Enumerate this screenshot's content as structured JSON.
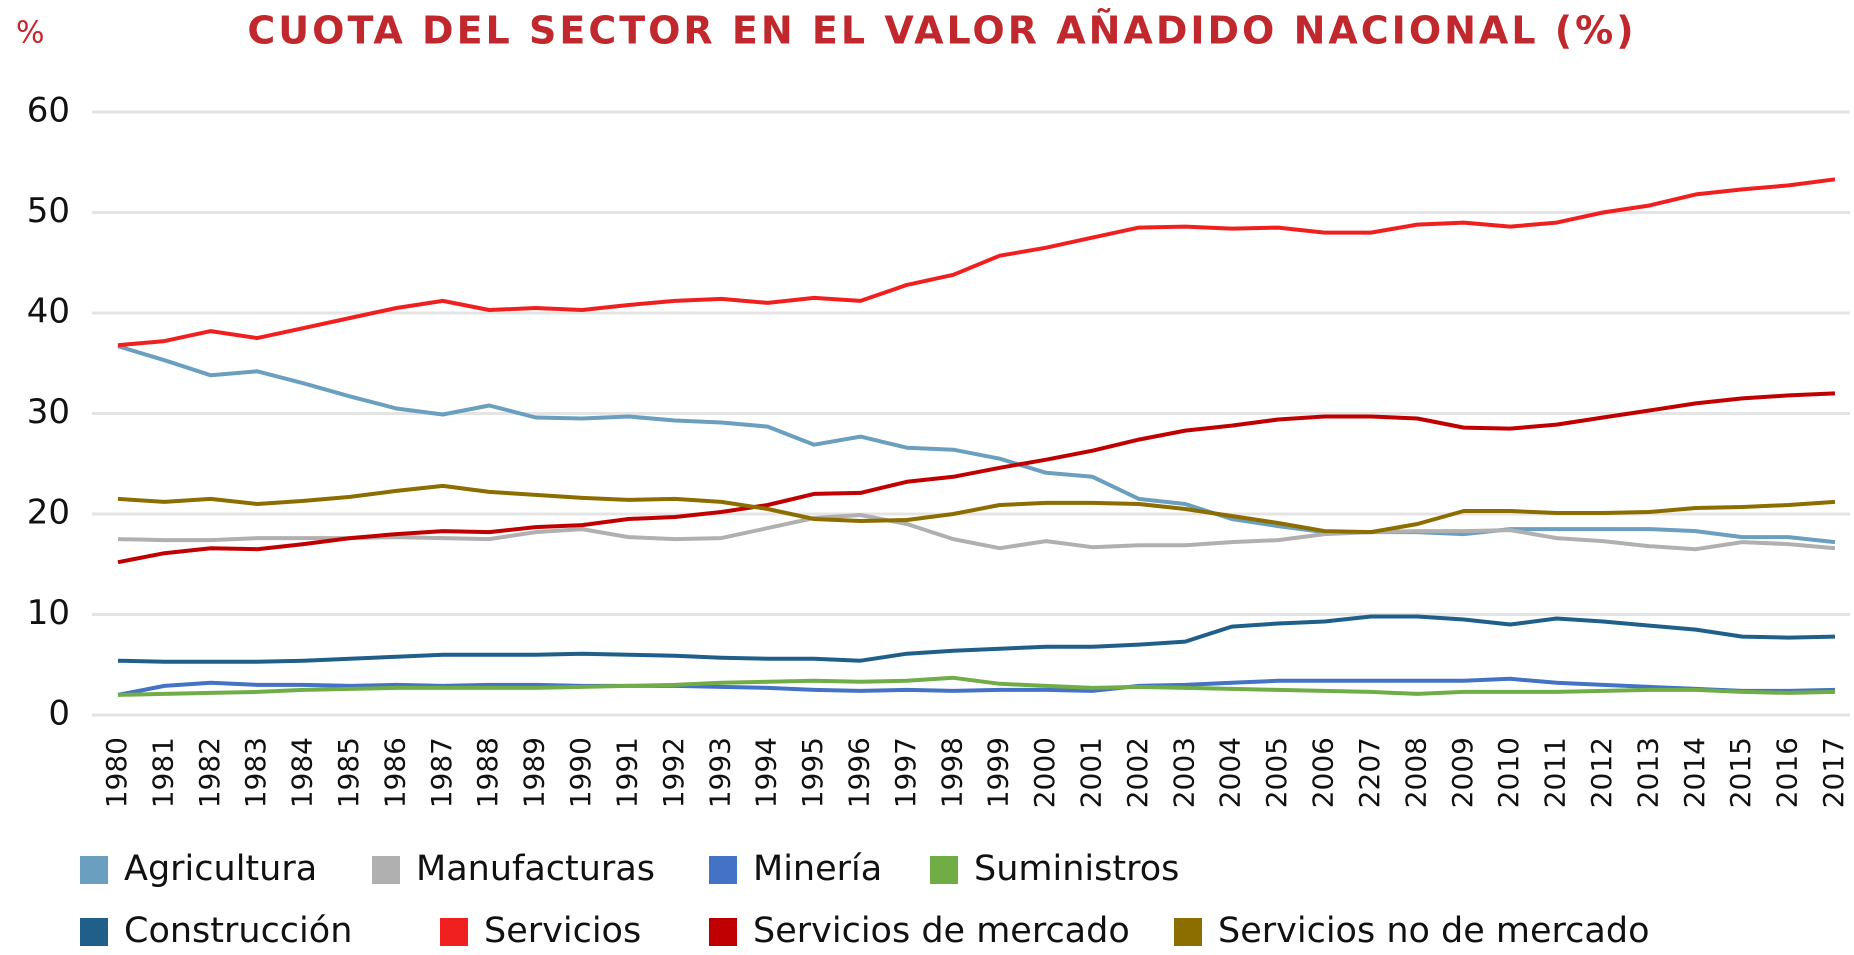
{
  "chart_data": {
    "type": "line",
    "title": "CUOTA DEL SECTOR EN EL VALOR AÑADIDO NACIONAL (%)",
    "y_label": "%",
    "categories": [
      "1980",
      "1981",
      "1982",
      "1983",
      "1984",
      "1985",
      "1986",
      "1987",
      "1988",
      "1989",
      "1990",
      "1991",
      "1992",
      "1993",
      "1994",
      "1995",
      "1996",
      "1997",
      "1998",
      "1999",
      "2000",
      "2001",
      "2002",
      "2003",
      "2004",
      "2005",
      "2006",
      "2207",
      "2008",
      "2009",
      "2010",
      "2011",
      "2012",
      "2013",
      "2014",
      "2015",
      "2016",
      "2017"
    ],
    "ylim": [
      0,
      60
    ],
    "yticks": [
      0,
      10,
      20,
      30,
      40,
      50,
      60
    ],
    "grid": true,
    "legend": "bottom",
    "series": [
      {
        "name": "Agricultura",
        "color": "#6a9fbf",
        "values": [
          36.7,
          35.3,
          33.8,
          34.2,
          33.0,
          31.7,
          30.5,
          29.9,
          30.8,
          29.6,
          29.5,
          29.7,
          29.3,
          29.1,
          28.7,
          26.9,
          27.7,
          26.6,
          26.4,
          25.5,
          24.1,
          23.7,
          21.5,
          21.0,
          19.5,
          18.8,
          18.2,
          18.2,
          18.2,
          18.0,
          18.5,
          18.5,
          18.5,
          18.5,
          18.3,
          17.7,
          17.7,
          17.2
        ]
      },
      {
        "name": "Manufacturas",
        "color": "#b0b0b0",
        "values": [
          17.5,
          17.4,
          17.4,
          17.6,
          17.6,
          17.6,
          17.7,
          17.6,
          17.5,
          18.2,
          18.5,
          17.7,
          17.5,
          17.6,
          18.6,
          19.6,
          19.9,
          19.0,
          17.5,
          16.6,
          17.3,
          16.7,
          16.9,
          16.9,
          17.2,
          17.4,
          18.0,
          18.2,
          18.3,
          18.3,
          18.4,
          17.6,
          17.3,
          16.8,
          16.5,
          17.2,
          17.0,
          16.6
        ]
      },
      {
        "name": "Minería",
        "color": "#4472c4",
        "values": [
          2.0,
          2.9,
          3.2,
          3.0,
          3.0,
          2.9,
          3.0,
          2.9,
          3.0,
          3.0,
          2.9,
          2.9,
          2.9,
          2.8,
          2.7,
          2.5,
          2.4,
          2.5,
          2.4,
          2.5,
          2.5,
          2.4,
          2.9,
          3.0,
          3.2,
          3.4,
          3.4,
          3.4,
          3.4,
          3.4,
          3.6,
          3.2,
          3.0,
          2.8,
          2.6,
          2.4,
          2.4,
          2.5
        ]
      },
      {
        "name": "Suministros",
        "color": "#70ad47",
        "values": [
          2.0,
          2.1,
          2.2,
          2.3,
          2.5,
          2.6,
          2.7,
          2.7,
          2.7,
          2.7,
          2.8,
          2.9,
          3.0,
          3.2,
          3.3,
          3.4,
          3.3,
          3.4,
          3.7,
          3.1,
          2.9,
          2.7,
          2.8,
          2.7,
          2.6,
          2.5,
          2.4,
          2.3,
          2.1,
          2.3,
          2.3,
          2.3,
          2.4,
          2.5,
          2.5,
          2.3,
          2.2,
          2.3
        ]
      },
      {
        "name": "Construcción",
        "color": "#1f5f8a",
        "values": [
          5.4,
          5.3,
          5.3,
          5.3,
          5.4,
          5.6,
          5.8,
          6.0,
          6.0,
          6.0,
          6.1,
          6.0,
          5.9,
          5.7,
          5.6,
          5.6,
          5.4,
          6.1,
          6.4,
          6.6,
          6.8,
          6.8,
          7.0,
          7.3,
          8.8,
          9.1,
          9.3,
          9.8,
          9.8,
          9.5,
          9.0,
          9.6,
          9.3,
          8.9,
          8.5,
          7.8,
          7.7,
          7.8
        ]
      },
      {
        "name": "Servicios",
        "color": "#f02020",
        "values": [
          36.8,
          37.2,
          38.2,
          37.5,
          38.5,
          39.5,
          40.5,
          41.2,
          40.3,
          40.5,
          40.3,
          40.8,
          41.2,
          41.4,
          41.0,
          41.5,
          41.2,
          42.8,
          43.8,
          45.7,
          46.5,
          47.5,
          48.5,
          48.6,
          48.4,
          48.5,
          48.0,
          48.0,
          48.8,
          49.0,
          48.6,
          49.0,
          50.0,
          50.7,
          51.8,
          52.3,
          52.7,
          53.3
        ]
      },
      {
        "name": "Servicios de mercado",
        "color": "#c00000",
        "values": [
          15.2,
          16.1,
          16.6,
          16.5,
          17.0,
          17.6,
          18.0,
          18.3,
          18.2,
          18.7,
          18.9,
          19.5,
          19.7,
          20.2,
          20.9,
          22.0,
          22.1,
          23.2,
          23.7,
          24.6,
          25.4,
          26.3,
          27.4,
          28.3,
          28.8,
          29.4,
          29.7,
          29.7,
          29.5,
          28.6,
          28.5,
          28.9,
          29.6,
          30.3,
          31.0,
          31.5,
          31.8,
          32.0
        ]
      },
      {
        "name": "Servicios no de mercado",
        "color": "#8c6d00",
        "values": [
          21.5,
          21.2,
          21.5,
          21.0,
          21.3,
          21.7,
          22.3,
          22.8,
          22.2,
          21.9,
          21.6,
          21.4,
          21.5,
          21.2,
          20.5,
          19.5,
          19.3,
          19.4,
          20.0,
          20.9,
          21.1,
          21.1,
          21.0,
          20.5,
          19.8,
          19.1,
          18.3,
          18.2,
          19.0,
          20.3,
          20.3,
          20.1,
          20.1,
          20.2,
          20.6,
          20.7,
          20.9,
          21.2
        ]
      }
    ]
  }
}
